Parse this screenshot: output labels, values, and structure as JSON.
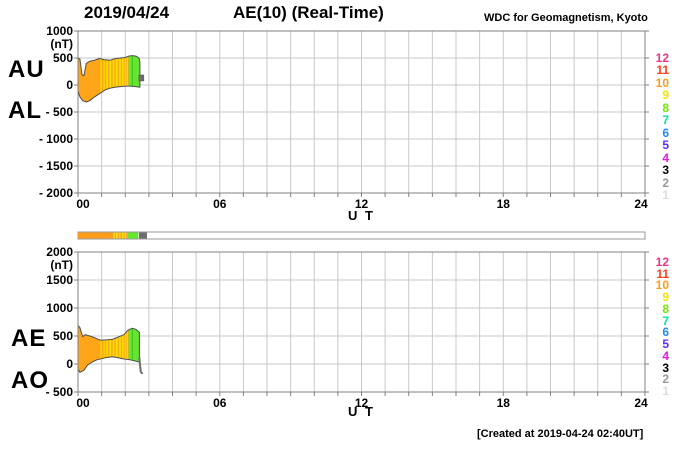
{
  "header": {
    "date": "2019/04/24",
    "title": "AE(10) (Real-Time)",
    "credit": "WDC for Geomagnetism, Kyoto"
  },
  "footer": {
    "created": "[Created at 2019-04-24 02:40UT]"
  },
  "stations": [
    {
      "id": "12",
      "color": "#F23388"
    },
    {
      "id": "11",
      "color": "#FF3C19"
    },
    {
      "id": "10",
      "color": "#FF9C19"
    },
    {
      "id": "9",
      "color": "#F2E600"
    },
    {
      "id": "8",
      "color": "#77E600"
    },
    {
      "id": "7",
      "color": "#00E6A0"
    },
    {
      "id": "6",
      "color": "#1F8CFF"
    },
    {
      "id": "5",
      "color": "#5A2EFF"
    },
    {
      "id": "4",
      "color": "#E619E6"
    },
    {
      "id": "3",
      "color": "#000000"
    },
    {
      "id": "2",
      "color": "#999999"
    },
    {
      "id": "1",
      "color": "#DCDCDC"
    }
  ],
  "station_bar": {
    "xlim": [
      0,
      24
    ],
    "segments": [
      {
        "t0": 0.0,
        "t1": 1.5,
        "color": "#FF9C19"
      },
      {
        "t0": 1.5,
        "t1": 1.56,
        "color": "#F2E600"
      },
      {
        "t0": 1.56,
        "t1": 1.62,
        "color": "#FF9C19"
      },
      {
        "t0": 1.62,
        "t1": 1.68,
        "color": "#F2E600"
      },
      {
        "t0": 1.68,
        "t1": 1.74,
        "color": "#FF9C19"
      },
      {
        "t0": 1.74,
        "t1": 1.8,
        "color": "#F2E600"
      },
      {
        "t0": 1.8,
        "t1": 1.86,
        "color": "#FF9C19"
      },
      {
        "t0": 1.86,
        "t1": 1.92,
        "color": "#F2E600"
      },
      {
        "t0": 1.92,
        "t1": 1.98,
        "color": "#FF9C19"
      },
      {
        "t0": 1.98,
        "t1": 2.04,
        "color": "#F2E600"
      },
      {
        "t0": 2.04,
        "t1": 2.1,
        "color": "#FF9C19"
      },
      {
        "t0": 2.1,
        "t1": 2.55,
        "color": "#66E62E"
      },
      {
        "t0": 2.58,
        "t1": 2.92,
        "color": "#6E6E6E"
      }
    ]
  },
  "chart_data": [
    {
      "id": "top",
      "type": "area",
      "panel_labels": [
        "AU",
        "AL"
      ],
      "ylabel_unit": "(nT)",
      "xlabel": "U T",
      "ylim": [
        -2000,
        1000
      ],
      "yticks": [
        1000,
        500,
        0,
        -500,
        -1000,
        -1500,
        -2000
      ],
      "ytick_labels": [
        "1000",
        "500",
        "0",
        "- 500",
        "- 1000",
        "- 1500",
        "- 2000"
      ],
      "xlim": [
        0,
        24
      ],
      "xticks": [
        0,
        6,
        12,
        18,
        24
      ],
      "xtick_labels": [
        "00",
        "06",
        "12",
        "18",
        "24"
      ],
      "grid": true,
      "band_color": "#FFA519",
      "series": [
        {
          "name": "AU",
          "points": [
            [
              0,
              500
            ],
            [
              0.08,
              480
            ],
            [
              0.17,
              190
            ],
            [
              0.25,
              170
            ],
            [
              0.35,
              400
            ],
            [
              0.5,
              440
            ],
            [
              0.7,
              460
            ],
            [
              0.9,
              490
            ],
            [
              1.1,
              470
            ],
            [
              1.35,
              460
            ],
            [
              1.6,
              490
            ],
            [
              1.8,
              500
            ],
            [
              2.0,
              510
            ],
            [
              2.15,
              535
            ],
            [
              2.3,
              545
            ],
            [
              2.45,
              535
            ],
            [
              2.58,
              500
            ],
            [
              2.62,
              420
            ]
          ]
        },
        {
          "name": "AL",
          "points": [
            [
              0,
              -110
            ],
            [
              0.08,
              -220
            ],
            [
              0.2,
              -290
            ],
            [
              0.35,
              -315
            ],
            [
              0.5,
              -290
            ],
            [
              0.7,
              -220
            ],
            [
              0.95,
              -150
            ],
            [
              1.15,
              -90
            ],
            [
              1.35,
              -60
            ],
            [
              1.55,
              -40
            ],
            [
              1.8,
              -30
            ],
            [
              2.0,
              -20
            ],
            [
              2.2,
              -20
            ],
            [
              2.45,
              -30
            ],
            [
              2.62,
              -40
            ]
          ]
        }
      ],
      "stripes": [
        {
          "t0": 0.95,
          "t1": 1.0,
          "color": "#F5E800"
        },
        {
          "t0": 1.08,
          "t1": 1.13,
          "color": "#F5E800"
        },
        {
          "t0": 1.2,
          "t1": 1.26,
          "color": "#F5E800"
        },
        {
          "t0": 1.33,
          "t1": 1.4,
          "color": "#F5E800"
        },
        {
          "t0": 1.47,
          "t1": 1.54,
          "color": "#F5E800"
        },
        {
          "t0": 1.6,
          "t1": 1.68,
          "color": "#F5E800"
        },
        {
          "t0": 1.74,
          "t1": 1.81,
          "color": "#F5E800"
        },
        {
          "t0": 1.87,
          "t1": 1.93,
          "color": "#F5E800"
        },
        {
          "t0": 1.98,
          "t1": 2.04,
          "color": "#F5E800"
        },
        {
          "t0": 2.07,
          "t1": 2.11,
          "color": "#F5E800"
        },
        {
          "t0": 2.14,
          "t1": 2.62,
          "color": "#66E62E"
        },
        {
          "t0": 2.28,
          "t1": 2.32,
          "color": "#3FBF1F"
        }
      ],
      "gray_marker": {
        "t": 2.66,
        "v": 130,
        "color": "#6E6E6E"
      }
    },
    {
      "id": "bottom",
      "type": "area",
      "panel_labels": [
        "AE",
        "AO"
      ],
      "ylabel_unit": "(nT)",
      "xlabel": "U T",
      "ylim": [
        -500,
        2000
      ],
      "yticks": [
        2000,
        1500,
        1000,
        500,
        0,
        -500
      ],
      "ytick_labels": [
        "2000",
        "1500",
        "1000",
        "500",
        "0",
        "- 500"
      ],
      "xlim": [
        0,
        24
      ],
      "xticks": [
        0,
        6,
        12,
        18,
        24
      ],
      "xtick_labels": [
        "00",
        "06",
        "12",
        "18",
        "24"
      ],
      "grid": true,
      "band_color": "#FFA519",
      "series": [
        {
          "name": "AE",
          "points": [
            [
              0,
              690
            ],
            [
              0.08,
              650
            ],
            [
              0.2,
              490
            ],
            [
              0.3,
              525
            ],
            [
              0.5,
              500
            ],
            [
              0.7,
              470
            ],
            [
              0.95,
              425
            ],
            [
              1.2,
              430
            ],
            [
              1.45,
              440
            ],
            [
              1.7,
              480
            ],
            [
              1.95,
              525
            ],
            [
              2.1,
              600
            ],
            [
              2.3,
              640
            ],
            [
              2.45,
              620
            ],
            [
              2.6,
              565
            ]
          ]
        },
        {
          "name": "AO",
          "points": [
            [
              0,
              -90
            ],
            [
              0.08,
              -150
            ],
            [
              0.25,
              -110
            ],
            [
              0.4,
              -20
            ],
            [
              0.6,
              35
            ],
            [
              0.8,
              75
            ],
            [
              1.15,
              110
            ],
            [
              1.45,
              130
            ],
            [
              1.7,
              110
            ],
            [
              1.95,
              90
            ],
            [
              2.2,
              75
            ],
            [
              2.4,
              55
            ],
            [
              2.6,
              35
            ]
          ]
        }
      ],
      "stripes": [
        {
          "t0": 0.95,
          "t1": 1.0,
          "color": "#F5E800"
        },
        {
          "t0": 1.08,
          "t1": 1.13,
          "color": "#F5E800"
        },
        {
          "t0": 1.2,
          "t1": 1.26,
          "color": "#F5E800"
        },
        {
          "t0": 1.33,
          "t1": 1.4,
          "color": "#F5E800"
        },
        {
          "t0": 1.47,
          "t1": 1.54,
          "color": "#F5E800"
        },
        {
          "t0": 1.6,
          "t1": 1.68,
          "color": "#F5E800"
        },
        {
          "t0": 1.74,
          "t1": 1.81,
          "color": "#F5E800"
        },
        {
          "t0": 1.87,
          "t1": 1.93,
          "color": "#F5E800"
        },
        {
          "t0": 1.98,
          "t1": 2.04,
          "color": "#F5E800"
        },
        {
          "t0": 2.07,
          "t1": 2.11,
          "color": "#F5E800"
        },
        {
          "t0": 2.14,
          "t1": 2.6,
          "color": "#66E62E"
        },
        {
          "t0": 2.28,
          "t1": 2.32,
          "color": "#3FBF1F"
        }
      ],
      "gray_tail": [
        [
          2.6,
          110
        ],
        [
          2.63,
          -30
        ],
        [
          2.66,
          -140
        ],
        [
          2.71,
          -165
        ]
      ]
    }
  ]
}
